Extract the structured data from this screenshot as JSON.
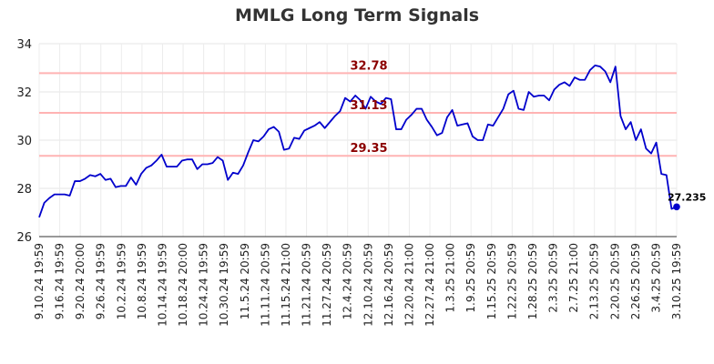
{
  "chart_data": {
    "type": "line",
    "title": "MMLG Long Term Signals",
    "xlabel": "",
    "ylabel": "",
    "ylim": [
      26,
      34
    ],
    "yticks": [
      26,
      28,
      30,
      32,
      34
    ],
    "grid": true,
    "line_color": "#0000cc",
    "hline_color": "#ffb3b3",
    "label_color": "#8b0000",
    "xtick_labels": [
      "9.10.24 19:59",
      "9.16.24 19:59",
      "9.20.24 20:00",
      "9.26.24 19:59",
      "10.2.24 19:59",
      "10.8.24 19:59",
      "10.14.24 19:59",
      "10.18.24 20:00",
      "10.24.24 19:59",
      "10.30.24 19:59",
      "11.5.24 20:59",
      "11.11.24 20:59",
      "11.15.24 21:00",
      "11.21.24 20:59",
      "11.27.24 20:59",
      "12.4.24 20:59",
      "12.10.24 20:59",
      "12.16.24 20:59",
      "12.20.24 21:00",
      "12.27.24 21:00",
      "1.3.25 21:00",
      "1.9.25 20:59",
      "1.15.25 20:59",
      "1.22.25 20:59",
      "1.28.25 20:59",
      "2.3.25 20:59",
      "2.7.25 21:00",
      "2.13.25 20:59",
      "2.20.25 20:59",
      "2.26.25 20:59",
      "3.4.25 20:59",
      "3.10.25 19:59"
    ],
    "hlines": [
      {
        "value": 32.78,
        "label": "32.78"
      },
      {
        "value": 31.13,
        "label": "31.13"
      },
      {
        "value": 29.35,
        "label": "29.35"
      }
    ],
    "values": [
      26.8,
      27.4,
      27.6,
      27.75,
      27.75,
      27.75,
      27.7,
      28.3,
      28.3,
      28.4,
      28.55,
      28.5,
      28.6,
      28.35,
      28.4,
      28.05,
      28.1,
      28.1,
      28.45,
      28.15,
      28.6,
      28.85,
      28.95,
      29.15,
      29.4,
      28.9,
      28.9,
      28.9,
      29.15,
      29.2,
      29.2,
      28.8,
      29.0,
      29.0,
      29.05,
      29.3,
      29.15,
      28.35,
      28.65,
      28.6,
      28.95,
      29.5,
      30.0,
      29.95,
      30.15,
      30.45,
      30.55,
      30.35,
      29.6,
      29.65,
      30.1,
      30.05,
      30.4,
      30.5,
      30.6,
      30.75,
      30.5,
      30.75,
      31.0,
      31.2,
      31.75,
      31.6,
      31.85,
      31.65,
      31.3,
      31.8,
      31.6,
      31.5,
      31.75,
      31.7,
      30.45,
      30.45,
      30.85,
      31.05,
      31.3,
      31.3,
      30.85,
      30.55,
      30.2,
      30.3,
      30.95,
      31.25,
      30.6,
      30.65,
      30.7,
      30.15,
      30.0,
      30.0,
      30.65,
      30.6,
      30.95,
      31.3,
      31.9,
      32.05,
      31.3,
      31.25,
      32.0,
      31.8,
      31.85,
      31.85,
      31.65,
      32.1,
      32.3,
      32.4,
      32.25,
      32.6,
      32.5,
      32.5,
      32.9,
      33.1,
      33.05,
      32.85,
      32.4,
      33.05,
      31.0,
      30.45,
      30.75,
      30.0,
      30.45,
      29.65,
      29.45,
      29.9,
      28.6,
      28.55,
      27.15,
      27.235
    ],
    "last_value_label": "27.235"
  }
}
